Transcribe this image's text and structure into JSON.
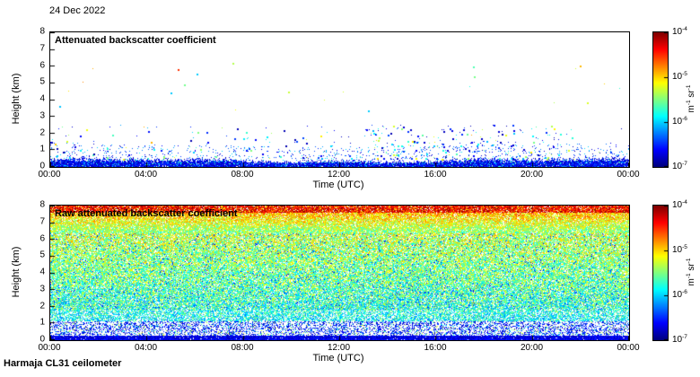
{
  "page": {
    "date_label": "24 Dec 2022",
    "footer_label": "Harmaja CL31 ceilometer"
  },
  "colorbar": {
    "colormap": "jet",
    "scale": "log",
    "range_m1sr1": [
      "1e-7",
      "1e-4"
    ],
    "tick_labels": [
      {
        "base": "10",
        "exp": "-4"
      },
      {
        "base": "10",
        "exp": "-5"
      },
      {
        "base": "10",
        "exp": "-6"
      },
      {
        "base": "10",
        "exp": "-7"
      }
    ],
    "unit_parts": [
      {
        "base": "m",
        "exp": "-1"
      },
      {
        "base": "sr",
        "exp": "-1"
      }
    ]
  },
  "chart_data": [
    {
      "type": "heatmap",
      "title": "Attenuated backscatter coefficient",
      "xlabel": "Time (UTC)",
      "ylabel": "Height (km)",
      "x_ticks": [
        "00:00",
        "04:00",
        "08:00",
        "12:00",
        "16:00",
        "20:00",
        "00:00"
      ],
      "y_ticks": [
        "0",
        "1",
        "2",
        "3",
        "4",
        "5",
        "6",
        "7",
        "8"
      ],
      "xlim_hours": [
        0,
        24
      ],
      "ylim_km": [
        0,
        8
      ],
      "grid": false,
      "legend": "colorbar-right",
      "content_summary": "Mostly clear day: continuous surface aerosol/boundary layer below ~0.5 km (blue, ~1e-6 m-1 sr-1), sparse blue/cyan/green specks mainly below 2.5 km (denser 13:00-20:00 UTC), a few isolated points up to ~6 km including one orange point near 5.8 km around 05:15 UTC.",
      "layers": [
        {
          "name": "surface aerosol layer",
          "height_km": [
            0,
            0.6
          ],
          "backscatter_m1sr1": "1e-6 to 1e-5"
        },
        {
          "name": "sparse specks",
          "height_km": [
            0.6,
            2.5
          ],
          "backscatter_m1sr1": "1e-6 to 1e-5"
        },
        {
          "name": "isolated high points",
          "height_km": [
            2.5,
            6.2
          ],
          "backscatter_m1sr1": "1e-6 to 3e-5"
        }
      ]
    },
    {
      "type": "heatmap",
      "title": "Raw attenuated backscatter coefficient",
      "xlabel": "Time (UTC)",
      "ylabel": "Height (km)",
      "x_ticks": [
        "00:00",
        "04:00",
        "08:00",
        "12:00",
        "16:00",
        "20:00",
        "00:00"
      ],
      "y_ticks": [
        "0",
        "1",
        "2",
        "3",
        "4",
        "5",
        "6",
        "7",
        "8"
      ],
      "xlim_hours": [
        0,
        24
      ],
      "ylim_km": [
        0,
        8
      ],
      "grid": false,
      "legend": "colorbar-right",
      "content_summary": "Raw (uncorrected) signal dominated by range-dependent instrument noise: solid blue surface band below ~0.3 km, blue/white speckle 0.3-1.5 km, green/cyan 1.5-5 km, yellow-orange 5-7.5 km, red/dark-red near the 7.5-8 km top edge; uniform across the whole 24 h.",
      "noise_profile": [
        {
          "height_km": 0.2,
          "backscatter_m1sr1": "2e-7"
        },
        {
          "height_km": 1.0,
          "backscatter_m1sr1": "5e-7"
        },
        {
          "height_km": 3.0,
          "backscatter_m1sr1": "3e-6"
        },
        {
          "height_km": 5.0,
          "backscatter_m1sr1": "6e-6"
        },
        {
          "height_km": 6.5,
          "backscatter_m1sr1": "2e-5"
        },
        {
          "height_km": 7.8,
          "backscatter_m1sr1": "8e-5"
        }
      ]
    }
  ]
}
